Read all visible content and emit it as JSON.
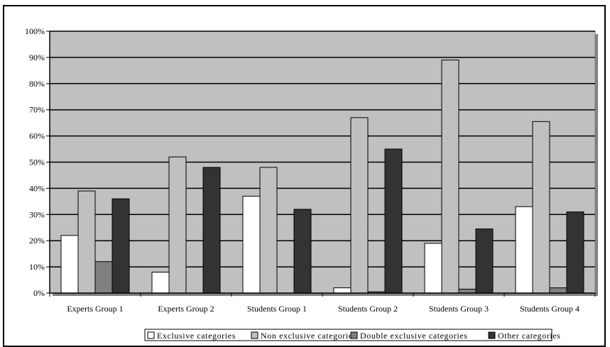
{
  "chart_data": {
    "type": "bar",
    "title": "",
    "xlabel": "",
    "ylabel": "",
    "ylim": [
      0,
      100
    ],
    "y_tick_labels": [
      "0%",
      "10%",
      "20%",
      "30%",
      "40%",
      "50%",
      "60%",
      "70%",
      "80%",
      "90%",
      "100%"
    ],
    "categories": [
      "Experts Group 1",
      "Experts Group 2",
      "Students Group 1",
      "Students Group 2",
      "Students Group 3",
      "Students Group 4"
    ],
    "series": [
      {
        "name": "Exclusive categories",
        "color": "#ffffff",
        "values": [
          22,
          8,
          37,
          2,
          19,
          33
        ]
      },
      {
        "name": "Non exclusive categories",
        "color": "#c0c0c0",
        "values": [
          39,
          52,
          48,
          67,
          89,
          65.5
        ]
      },
      {
        "name": "Double exclusive categories",
        "color": "#808080",
        "values": [
          12,
          0,
          0,
          0.5,
          1.5,
          2
        ]
      },
      {
        "name": "Other categories",
        "color": "#333333",
        "values": [
          36,
          48,
          32,
          55,
          24.5,
          31
        ]
      }
    ],
    "grid": true,
    "legend_position": "bottom",
    "plot_background": "#c0c0c0"
  }
}
